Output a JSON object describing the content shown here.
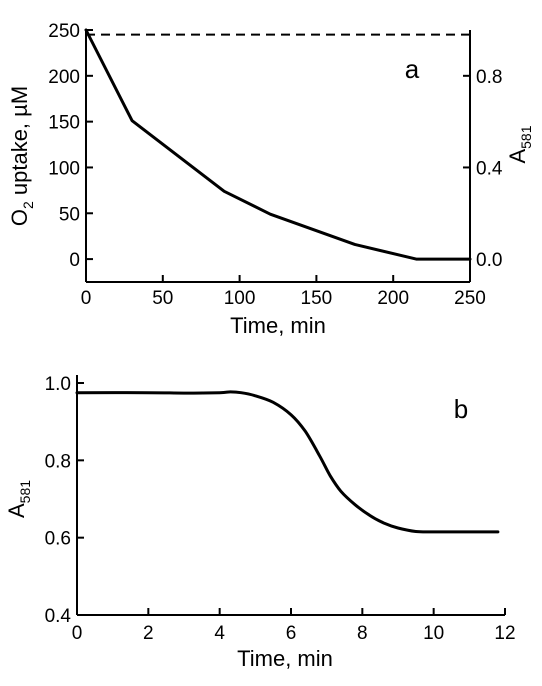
{
  "chart_data": [
    {
      "panel": "a",
      "type": "line",
      "xlabel": "Time, min",
      "ylabel_left": {
        "main": "O",
        "sub": "2",
        "rest": " uptake, µM"
      },
      "ylabel_right": {
        "main": "A",
        "sub": "581"
      },
      "xlim": [
        0,
        250
      ],
      "ylim_left": [
        -25,
        250
      ],
      "ylim_right": [
        -0.1,
        1.0
      ],
      "x_ticks": [
        0,
        50,
        100,
        150,
        200,
        250
      ],
      "x_tick_labels": [
        "0",
        "50",
        "100",
        "150",
        "200",
        "250"
      ],
      "y_ticks_left": [
        0,
        50,
        100,
        150,
        200,
        250
      ],
      "y_tick_labels_left": [
        "0",
        "50",
        "100",
        "150",
        "200",
        "250"
      ],
      "y_ticks_right": [
        0.0,
        0.4,
        0.8
      ],
      "y_tick_labels_right": [
        "0.0",
        "0.4",
        "0.8"
      ],
      "series": [
        {
          "axis": "left",
          "style": "solid",
          "x": [
            0,
            30,
            90,
            120,
            175,
            215,
            250
          ],
          "y": [
            250,
            151,
            74,
            49,
            16,
            0,
            0
          ]
        },
        {
          "axis": "right",
          "style": "dashed",
          "x": [
            0,
            250
          ],
          "y": [
            0.98,
            0.98
          ]
        }
      ]
    },
    {
      "panel": "b",
      "type": "line",
      "xlabel": "Time, min",
      "ylabel": {
        "main": "A",
        "sub": "581"
      },
      "xlim": [
        0,
        12
      ],
      "ylim": [
        0.4,
        1.0
      ],
      "x_ticks": [
        0,
        2,
        4,
        6,
        8,
        10,
        12
      ],
      "x_tick_labels": [
        "0",
        "2",
        "4",
        "6",
        "8",
        "10",
        "12"
      ],
      "y_ticks": [
        0.4,
        0.6,
        0.8,
        1.0
      ],
      "y_tick_labels": [
        "0.4",
        "0.6",
        "0.8",
        "1.0"
      ],
      "series": [
        {
          "style": "solid",
          "x": [
            0,
            2,
            3,
            4,
            4.3,
            4.6,
            5.0,
            5.5,
            6.0,
            6.4,
            6.8,
            7.1,
            7.4,
            7.8,
            8.2,
            8.6,
            9.0,
            9.5,
            10,
            11,
            11.8
          ],
          "y": [
            0.975,
            0.975,
            0.974,
            0.975,
            0.977,
            0.975,
            0.967,
            0.95,
            0.918,
            0.875,
            0.812,
            0.76,
            0.72,
            0.685,
            0.658,
            0.638,
            0.625,
            0.616,
            0.615,
            0.615,
            0.615
          ]
        }
      ]
    }
  ]
}
